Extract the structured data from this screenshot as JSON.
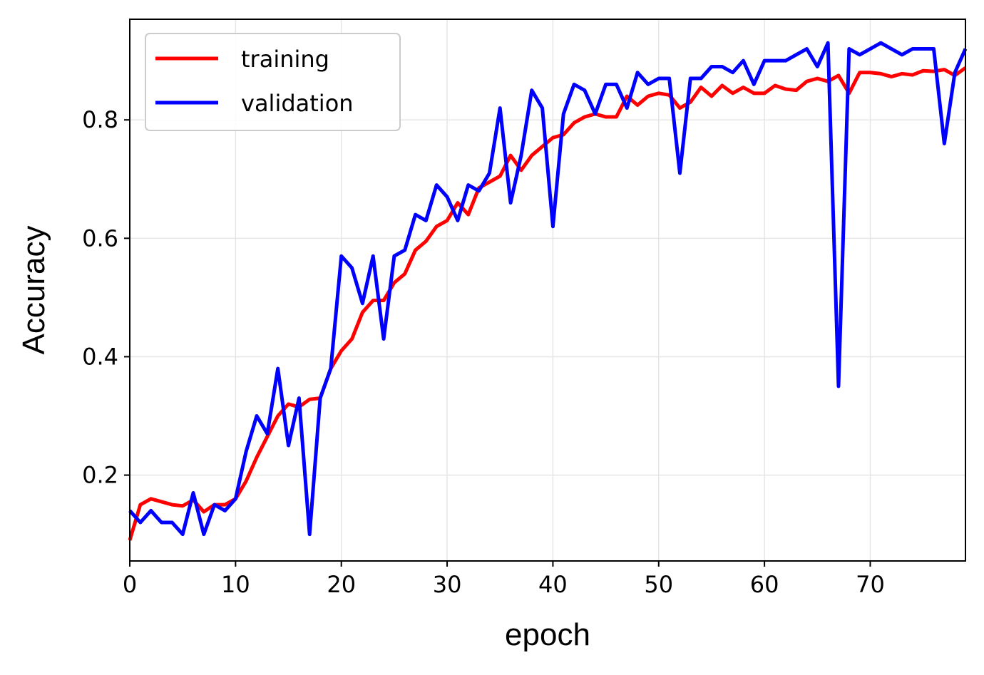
{
  "chart_data": {
    "type": "line",
    "title": "",
    "xlabel": "epoch",
    "ylabel": "Accuracy",
    "xlim": [
      0,
      79
    ],
    "ylim": [
      0.055,
      0.97
    ],
    "xticks": [
      0,
      10,
      20,
      30,
      40,
      50,
      60,
      70
    ],
    "xtick_labels": [
      "0",
      "10",
      "20",
      "30",
      "40",
      "50",
      "60",
      "70"
    ],
    "yticks": [
      0.2,
      0.4,
      0.6,
      0.8
    ],
    "ytick_labels": [
      "0.2",
      "0.4",
      "0.6",
      "0.8"
    ],
    "grid": true,
    "legend_position": "top-left",
    "series": [
      {
        "name": "training",
        "color": "#ff0000",
        "x": [
          0,
          1,
          2,
          3,
          4,
          5,
          6,
          7,
          8,
          9,
          10,
          11,
          12,
          13,
          14,
          15,
          16,
          17,
          18,
          19,
          20,
          21,
          22,
          23,
          24,
          25,
          26,
          27,
          28,
          29,
          30,
          31,
          32,
          33,
          34,
          35,
          36,
          37,
          38,
          39,
          40,
          41,
          42,
          43,
          44,
          45,
          46,
          47,
          48,
          49,
          50,
          51,
          52,
          53,
          54,
          55,
          56,
          57,
          58,
          59,
          60,
          61,
          62,
          63,
          64,
          65,
          66,
          67,
          68,
          69,
          70,
          71,
          72,
          73,
          74,
          75,
          76,
          77,
          78,
          79
        ],
        "values": [
          0.09,
          0.15,
          0.16,
          0.155,
          0.15,
          0.148,
          0.158,
          0.138,
          0.15,
          0.15,
          0.16,
          0.19,
          0.23,
          0.265,
          0.3,
          0.32,
          0.315,
          0.328,
          0.33,
          0.38,
          0.41,
          0.43,
          0.475,
          0.495,
          0.495,
          0.525,
          0.54,
          0.58,
          0.595,
          0.62,
          0.63,
          0.66,
          0.64,
          0.685,
          0.695,
          0.705,
          0.74,
          0.715,
          0.74,
          0.755,
          0.77,
          0.775,
          0.795,
          0.805,
          0.81,
          0.805,
          0.805,
          0.84,
          0.825,
          0.84,
          0.845,
          0.842,
          0.82,
          0.83,
          0.855,
          0.84,
          0.858,
          0.845,
          0.855,
          0.845,
          0.845,
          0.858,
          0.852,
          0.85,
          0.865,
          0.87,
          0.865,
          0.875,
          0.845,
          0.88,
          0.88,
          0.878,
          0.873,
          0.878,
          0.876,
          0.883,
          0.882,
          0.885,
          0.875,
          0.888
        ]
      },
      {
        "name": "validation",
        "color": "#0000ff",
        "x": [
          0,
          1,
          2,
          3,
          4,
          5,
          6,
          7,
          8,
          9,
          10,
          11,
          12,
          13,
          14,
          15,
          16,
          17,
          18,
          19,
          20,
          21,
          22,
          23,
          24,
          25,
          26,
          27,
          28,
          29,
          30,
          31,
          32,
          33,
          34,
          35,
          36,
          37,
          38,
          39,
          40,
          41,
          42,
          43,
          44,
          45,
          46,
          47,
          48,
          49,
          50,
          51,
          52,
          53,
          54,
          55,
          56,
          57,
          58,
          59,
          60,
          61,
          62,
          63,
          64,
          65,
          66,
          67,
          68,
          69,
          70,
          71,
          72,
          73,
          74,
          75,
          76,
          77,
          78,
          79
        ],
        "values": [
          0.14,
          0.12,
          0.14,
          0.12,
          0.12,
          0.1,
          0.17,
          0.1,
          0.15,
          0.14,
          0.16,
          0.24,
          0.3,
          0.27,
          0.38,
          0.25,
          0.33,
          0.1,
          0.33,
          0.38,
          0.57,
          0.55,
          0.49,
          0.57,
          0.43,
          0.57,
          0.58,
          0.64,
          0.63,
          0.69,
          0.67,
          0.63,
          0.69,
          0.68,
          0.71,
          0.82,
          0.66,
          0.74,
          0.85,
          0.82,
          0.62,
          0.81,
          0.86,
          0.85,
          0.81,
          0.86,
          0.86,
          0.82,
          0.88,
          0.86,
          0.87,
          0.87,
          0.71,
          0.87,
          0.87,
          0.89,
          0.89,
          0.88,
          0.9,
          0.86,
          0.9,
          0.9,
          0.9,
          0.91,
          0.92,
          0.89,
          0.93,
          0.35,
          0.92,
          0.91,
          0.92,
          0.93,
          0.92,
          0.91,
          0.92,
          0.92,
          0.92,
          0.76,
          0.88,
          0.92
        ]
      }
    ]
  }
}
